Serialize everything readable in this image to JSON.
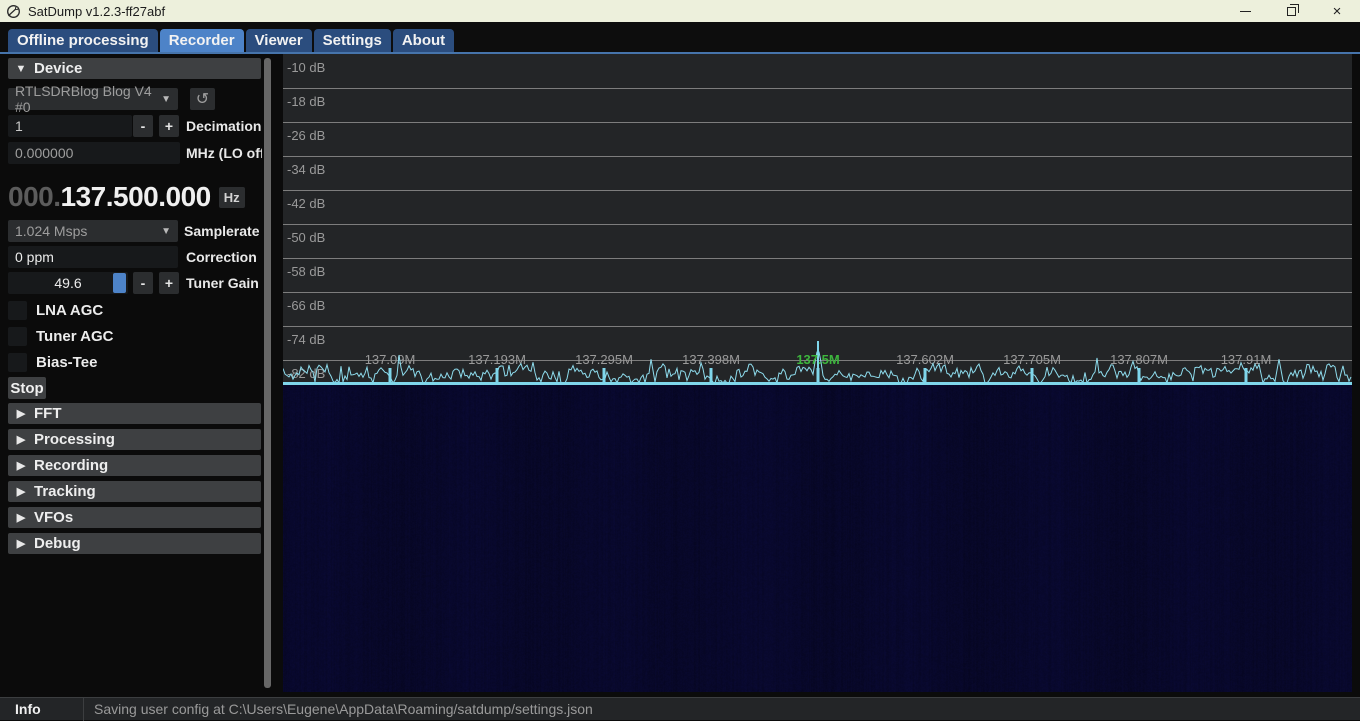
{
  "titlebar": {
    "title": "SatDump v1.2.3-ff27abf",
    "close_glyph": "×"
  },
  "tabs": [
    {
      "label": "Offline processing",
      "active": false
    },
    {
      "label": "Recorder",
      "active": true
    },
    {
      "label": "Viewer",
      "active": false
    },
    {
      "label": "Settings",
      "active": false
    },
    {
      "label": "About",
      "active": false
    }
  ],
  "controls": {
    "minus": "-",
    "plus": "+",
    "combo_arrow": "▼",
    "collapse_open": "▼",
    "collapse_closed": "▶",
    "refresh_icon": "↺"
  },
  "device": {
    "header": "Device",
    "source": "RTLSDRBlog Blog V4 #0",
    "decimation": {
      "value": "1",
      "label": "Decimation"
    },
    "lo_offset": {
      "value": "0.000000",
      "label": "MHz (LO offset)"
    },
    "frequency": {
      "dim_part": "000.",
      "main_part": "137.500.000",
      "unit": "Hz"
    },
    "samplerate": {
      "value": "1.024 Msps",
      "label": "Samplerate"
    },
    "correction": {
      "value": "0 ppm",
      "label": "Correction"
    },
    "tuner_gain": {
      "value": "49.6",
      "label": "Tuner Gain"
    },
    "checkboxes": [
      {
        "label": "LNA AGC",
        "checked": false
      },
      {
        "label": "Tuner AGC",
        "checked": false
      },
      {
        "label": "Bias-Tee",
        "checked": false
      }
    ],
    "stop_label": "Stop"
  },
  "collapsed_sections": [
    "FFT",
    "Processing",
    "Recording",
    "Tracking",
    "VFOs",
    "Debug"
  ],
  "fft": {
    "db_labels": [
      "-10 dB",
      "-18 dB",
      "-26 dB",
      "-34 dB",
      "-42 dB",
      "-50 dB",
      "-58 dB",
      "-66 dB",
      "-74 dB",
      "-82 dB"
    ],
    "freq_labels": [
      "137.09M",
      "137.193M",
      "137.295M",
      "137.398M",
      "137.5M",
      "137.602M",
      "137.705M",
      "137.807M",
      "137.91M"
    ],
    "center_freq_label": "137.5M",
    "noise_floor_db": -80,
    "colors": {
      "bg": "#232527",
      "grid": "#7d7d7d",
      "label": "#9a9a9a",
      "trace": "#8edced",
      "tick": "#7fd6eb",
      "center_label": "#3db53d",
      "waterfall_base": "#07072e"
    }
  },
  "statusbar": {
    "level": "Info",
    "message": "Saving user config at C:\\Users\\Eugene\\AppData\\Roaming/satdump/settings.json"
  }
}
